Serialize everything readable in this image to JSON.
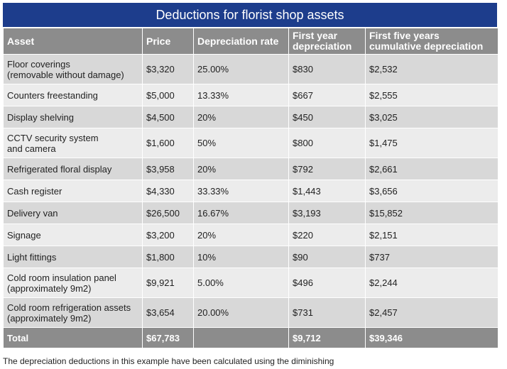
{
  "header": {
    "title": "Deductions for florist shop assets"
  },
  "table": {
    "columns": [
      "Asset",
      "Price",
      "Depreciation rate",
      "First year\ndepreciation",
      "First five years\ncumulative depreciation"
    ],
    "rows": [
      [
        "Floor coverings\n(removable without damage)",
        "$3,320",
        "25.00%",
        "$830",
        "$2,532"
      ],
      [
        "Counters freestanding",
        "$5,000",
        "13.33%",
        "$667",
        "$2,555"
      ],
      [
        "Display shelving",
        "$4,500",
        "20%",
        "$450",
        "$3,025"
      ],
      [
        "CCTV security system\nand camera",
        "$1,600",
        "50%",
        "$800",
        "$1,475"
      ],
      [
        "Refrigerated floral display",
        "$3,958",
        "20%",
        "$792",
        "$2,661"
      ],
      [
        "Cash register",
        "$4,330",
        "33.33%",
        "$1,443",
        "$3,656"
      ],
      [
        "Delivery van",
        "$26,500",
        "16.67%",
        "$3,193",
        "$15,852"
      ],
      [
        "Signage",
        "$3,200",
        "20%",
        "$220",
        "$2,151"
      ],
      [
        "Light fittings",
        "$1,800",
        "10%",
        "$90",
        "$737"
      ],
      [
        "Cold room insulation panel\n(approximately 9m2)",
        "$9,921",
        "5.00%",
        "$496",
        "$2,244"
      ],
      [
        "Cold room refrigeration assets\n(approximately 9m2)",
        "$3,654",
        "20.00%",
        "$731",
        "$2,457"
      ]
    ],
    "total": [
      "Total",
      "$67,783",
      "",
      "$9,712",
      "$39,346"
    ]
  },
  "footnote": "The depreciation deductions in this example have been calculated using the diminishing"
}
